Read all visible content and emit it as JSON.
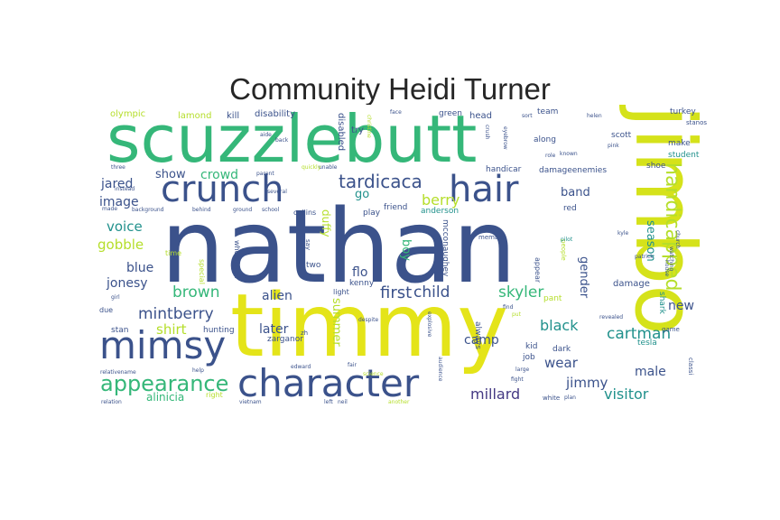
{
  "title": "Community Heidi Turner",
  "chart_data": {
    "type": "wordcloud",
    "title": "Community Heidi Turner",
    "colormap": [
      "#440154",
      "#414487",
      "#2a788e",
      "#22a884",
      "#7ad151",
      "#fde725"
    ],
    "words": [
      {
        "text": "nathan",
        "weight": 100,
        "color": "#3b528b"
      },
      {
        "text": "timmy",
        "weight": 78,
        "color": "#e4e419"
      },
      {
        "text": "jimbo",
        "weight": 72,
        "color": "#d5e21a"
      },
      {
        "text": "scuzzlebutt",
        "weight": 64,
        "color": "#35b779"
      },
      {
        "text": "character",
        "weight": 38,
        "color": "#3b528b"
      },
      {
        "text": "mimsy",
        "weight": 36,
        "color": "#3b528b"
      },
      {
        "text": "crunch",
        "weight": 35,
        "color": "#3b528b"
      },
      {
        "text": "hair",
        "weight": 35,
        "color": "#3b528b"
      },
      {
        "text": "appearance",
        "weight": 22,
        "color": "#35b779"
      },
      {
        "text": "handicapped",
        "weight": 20,
        "color": "#b5de2b"
      },
      {
        "text": "tardicaca",
        "weight": 17,
        "color": "#3b528b"
      },
      {
        "text": "first",
        "weight": 16,
        "color": "#3b528b"
      },
      {
        "text": "child",
        "weight": 15,
        "color": "#3b528b"
      },
      {
        "text": "brown",
        "weight": 15,
        "color": "#35b779"
      },
      {
        "text": "cartman",
        "weight": 15,
        "color": "#21918c"
      },
      {
        "text": "mintberry",
        "weight": 15,
        "color": "#3b528b"
      },
      {
        "text": "visitor",
        "weight": 15,
        "color": "#21918c"
      },
      {
        "text": "skyler",
        "weight": 14,
        "color": "#35b779"
      },
      {
        "text": "black",
        "weight": 14,
        "color": "#21918c"
      },
      {
        "text": "millard",
        "weight": 14,
        "color": "#443983"
      },
      {
        "text": "jimmy",
        "weight": 14,
        "color": "#3b528b"
      },
      {
        "text": "berry",
        "weight": 14,
        "color": "#b5de2b"
      },
      {
        "text": "shirt",
        "weight": 14,
        "color": "#b5de2b"
      },
      {
        "text": "voice",
        "weight": 14,
        "color": "#21918c"
      },
      {
        "text": "gobble",
        "weight": 14,
        "color": "#b5de2b"
      },
      {
        "text": "image",
        "weight": 13,
        "color": "#3b528b"
      },
      {
        "text": "jared",
        "weight": 13,
        "color": "#3b528b"
      },
      {
        "text": "jonesy",
        "weight": 13,
        "color": "#3b528b"
      },
      {
        "text": "blue",
        "weight": 13,
        "color": "#3b528b"
      },
      {
        "text": "crowd",
        "weight": 13,
        "color": "#35b779"
      },
      {
        "text": "show",
        "weight": 13,
        "color": "#3b528b"
      },
      {
        "text": "alien",
        "weight": 13,
        "color": "#3b528b"
      },
      {
        "text": "wear",
        "weight": 13,
        "color": "#3b528b"
      },
      {
        "text": "season",
        "weight": 13,
        "color": "#21918c"
      },
      {
        "text": "gender",
        "weight": 12,
        "color": "#3b528b"
      },
      {
        "text": "later",
        "weight": 12,
        "color": "#3b528b"
      },
      {
        "text": "summer",
        "weight": 12,
        "color": "#b5de2b"
      },
      {
        "text": "flo",
        "weight": 12,
        "color": "#3b528b"
      },
      {
        "text": "boy",
        "weight": 12,
        "color": "#35b779"
      },
      {
        "text": "band",
        "weight": 12,
        "color": "#3b528b"
      },
      {
        "text": "new",
        "weight": 12,
        "color": "#3b528b"
      },
      {
        "text": "male",
        "weight": 12,
        "color": "#3b528b"
      },
      {
        "text": "camp",
        "weight": 12,
        "color": "#3b528b"
      },
      {
        "text": "alinicia",
        "weight": 10,
        "color": "#35b779"
      },
      {
        "text": "go",
        "weight": 10,
        "color": "#21918c"
      },
      {
        "text": "duffy",
        "weight": 9,
        "color": "#b5de2b"
      },
      {
        "text": "damage",
        "weight": 8,
        "color": "#3b528b"
      },
      {
        "text": "shark",
        "weight": 8,
        "color": "#21918c"
      },
      {
        "text": "olympic",
        "weight": 8,
        "color": "#b5de2b"
      },
      {
        "text": "lamond",
        "weight": 8,
        "color": "#b5de2b"
      },
      {
        "text": "kill",
        "weight": 8,
        "color": "#3b528b"
      },
      {
        "text": "disability",
        "weight": 8,
        "color": "#3b528b"
      },
      {
        "text": "disabled",
        "weight": 8,
        "color": "#3b528b"
      },
      {
        "text": "try",
        "weight": 8,
        "color": "#3b528b"
      },
      {
        "text": "head",
        "weight": 8,
        "color": "#3b528b"
      },
      {
        "text": "green",
        "weight": 8,
        "color": "#3b528b"
      },
      {
        "text": "team",
        "weight": 8,
        "color": "#3b528b"
      },
      {
        "text": "turkey",
        "weight": 8,
        "color": "#3b528b"
      },
      {
        "text": "scott",
        "weight": 8,
        "color": "#3b528b"
      },
      {
        "text": "make",
        "weight": 8,
        "color": "#3b528b"
      },
      {
        "text": "student",
        "weight": 8,
        "color": "#21918c"
      },
      {
        "text": "shoe",
        "weight": 8,
        "color": "#3b528b"
      },
      {
        "text": "along",
        "weight": 8,
        "color": "#3b528b"
      },
      {
        "text": "handicar",
        "weight": 8,
        "color": "#3b528b"
      },
      {
        "text": "damageenemies",
        "weight": 8,
        "color": "#3b528b"
      },
      {
        "text": "zarganor",
        "weight": 8,
        "color": "#3b528b"
      },
      {
        "text": "hunting",
        "weight": 8,
        "color": "#3b528b"
      },
      {
        "text": "stan",
        "weight": 8,
        "color": "#3b528b"
      },
      {
        "text": "tesla",
        "weight": 8,
        "color": "#21918c"
      },
      {
        "text": "kid",
        "weight": 8,
        "color": "#3b528b"
      },
      {
        "text": "dark",
        "weight": 8,
        "color": "#3b528b"
      },
      {
        "text": "pant",
        "weight": 8,
        "color": "#b5de2b"
      },
      {
        "text": "anderson",
        "weight": 8,
        "color": "#21918c"
      },
      {
        "text": "friend",
        "weight": 8,
        "color": "#3b528b"
      },
      {
        "text": "play",
        "weight": 8,
        "color": "#3b528b"
      },
      {
        "text": "red",
        "weight": 8,
        "color": "#3b528b"
      },
      {
        "text": "two",
        "weight": 8,
        "color": "#3b528b"
      },
      {
        "text": "kenny",
        "weight": 8,
        "color": "#3b528b"
      },
      {
        "text": "time",
        "weight": 7,
        "color": "#b5de2b"
      },
      {
        "text": "due",
        "weight": 7,
        "color": "#3b528b"
      },
      {
        "text": "mcconaughey",
        "weight": 7,
        "color": "#3b528b"
      },
      {
        "text": "special",
        "weight": 7,
        "color": "#b5de2b"
      },
      {
        "text": "wheelchair",
        "weight": 7,
        "color": "#3b528b"
      },
      {
        "text": "always",
        "weight": 7,
        "color": "#3b528b"
      },
      {
        "text": "appear",
        "weight": 7,
        "color": "#3b528b"
      },
      {
        "text": "collins",
        "weight": 7,
        "color": "#3b528b"
      },
      {
        "text": "light",
        "weight": 7,
        "color": "#3b528b"
      },
      {
        "text": "job",
        "weight": 7,
        "color": "#3b528b"
      },
      {
        "text": "game",
        "weight": 6,
        "color": "#3b528b"
      },
      {
        "text": "people",
        "weight": 6,
        "color": "#b5de2b"
      },
      {
        "text": "stanos",
        "weight": 6,
        "color": "#3b528b"
      },
      {
        "text": "pilot",
        "weight": 5,
        "color": "#21918c"
      },
      {
        "text": "patrick",
        "weight": 5,
        "color": "#3b528b"
      },
      {
        "text": "say",
        "weight": 6,
        "color": "#3b528b"
      },
      {
        "text": "three",
        "weight": 5,
        "color": "#3b528b"
      },
      {
        "text": "back",
        "weight": 5,
        "color": "#3b528b"
      },
      {
        "text": "aide",
        "weight": 5,
        "color": "#3b528b"
      },
      {
        "text": "white",
        "weight": 6,
        "color": "#3b528b"
      },
      {
        "text": "plan",
        "weight": 5,
        "color": "#3b528b"
      },
      {
        "text": "fight",
        "weight": 5,
        "color": "#3b528b"
      },
      {
        "text": "right",
        "weight": 6,
        "color": "#b5de2b"
      },
      {
        "text": "classi",
        "weight": 5,
        "color": "#3b528b"
      },
      {
        "text": "revealed",
        "weight": 5,
        "color": "#3b528b"
      },
      {
        "text": "zh",
        "weight": 6,
        "color": "#3b528b"
      },
      {
        "text": "edward",
        "weight": 5,
        "color": "#3b528b"
      },
      {
        "text": "large",
        "weight": 5,
        "color": "#3b528b"
      },
      {
        "text": "fair",
        "weight": 5,
        "color": "#3b528b"
      },
      {
        "text": "vietnam",
        "weight": 5,
        "color": "#3b528b"
      },
      {
        "text": "another",
        "weight": 5,
        "color": "#b5de2b"
      },
      {
        "text": "member",
        "weight": 5,
        "color": "#3b528b"
      },
      {
        "text": "unable",
        "weight": 5,
        "color": "#3b528b"
      },
      {
        "text": "parent",
        "weight": 5,
        "color": "#3b528b"
      },
      {
        "text": "quickly",
        "weight": 5,
        "color": "#b5de2b"
      },
      {
        "text": "role",
        "weight": 5,
        "color": "#3b528b"
      },
      {
        "text": "pink",
        "weight": 5,
        "color": "#3b528b"
      },
      {
        "text": "sort",
        "weight": 5,
        "color": "#3b528b"
      },
      {
        "text": "known",
        "weight": 5,
        "color": "#3b528b"
      },
      {
        "text": "kyle",
        "weight": 5,
        "color": "#3b528b"
      },
      {
        "text": "instead",
        "weight": 5,
        "color": "#3b528b"
      },
      {
        "text": "made",
        "weight": 5,
        "color": "#3b528b"
      },
      {
        "text": "background",
        "weight": 5,
        "color": "#3b528b"
      },
      {
        "text": "behind",
        "weight": 5,
        "color": "#3b528b"
      },
      {
        "text": "ground",
        "weight": 5,
        "color": "#3b528b"
      },
      {
        "text": "school",
        "weight": 5,
        "color": "#3b528b"
      },
      {
        "text": "several",
        "weight": 5,
        "color": "#3b528b"
      },
      {
        "text": "relativename",
        "weight": 5,
        "color": "#3b528b"
      },
      {
        "text": "help",
        "weight": 5,
        "color": "#3b528b"
      },
      {
        "text": "science",
        "weight": 5,
        "color": "#b5de2b"
      },
      {
        "text": "left",
        "weight": 5,
        "color": "#3b528b"
      },
      {
        "text": "neil",
        "weight": 5,
        "color": "#3b528b"
      },
      {
        "text": "relation",
        "weight": 5,
        "color": "#3b528b"
      },
      {
        "text": "church",
        "weight": 5,
        "color": "#3b528b"
      },
      {
        "text": "house",
        "weight": 5,
        "color": "#3b528b"
      },
      {
        "text": "eyebrow",
        "weight": 5,
        "color": "#3b528b"
      },
      {
        "text": "crush",
        "weight": 5,
        "color": "#3b528b"
      },
      {
        "text": "audience",
        "weight": 5,
        "color": "#3b528b"
      },
      {
        "text": "explosive",
        "weight": 5,
        "color": "#3b528b"
      },
      {
        "text": "despite",
        "weight": 5,
        "color": "#3b528b"
      },
      {
        "text": "find",
        "weight": 5,
        "color": "#3b528b"
      },
      {
        "text": "put",
        "weight": 5,
        "color": "#b5de2b"
      },
      {
        "text": "face",
        "weight": 5,
        "color": "#3b528b"
      },
      {
        "text": "helen",
        "weight": 5,
        "color": "#3b528b"
      },
      {
        "text": "christine",
        "weight": 5,
        "color": "#b5de2b"
      },
      {
        "text": "girl",
        "weight": 5,
        "color": "#3b528b"
      },
      {
        "text": "watching",
        "weight": 5,
        "color": "#3b528b"
      }
    ]
  }
}
